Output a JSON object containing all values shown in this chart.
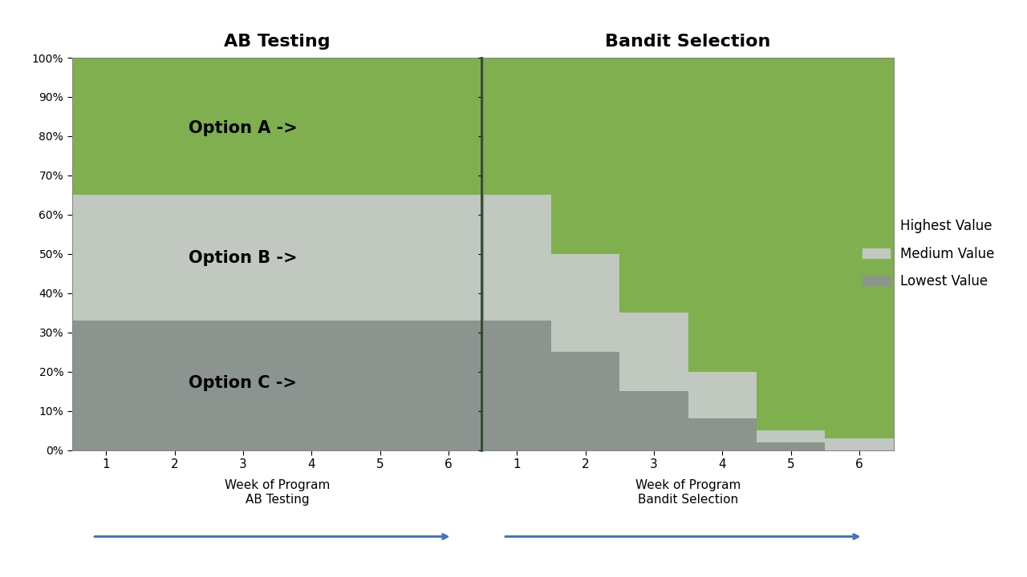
{
  "title_ab": "AB Testing",
  "title_bandit": "Bandit Selection",
  "color_highest": "#7faf4e",
  "color_medium": "#c0c8c0",
  "color_lowest": "#8c9490",
  "color_divider": "#2d4a2d",
  "color_arrow": "#4472c4",
  "xlabel_ab": "Week of Program\nAB Testing",
  "xlabel_bandit": "Week of Program\nBandit Selection",
  "legend_labels": [
    "Highest Value",
    "Medium Value",
    "Lowest Value"
  ],
  "ab_weeks": [
    1,
    2,
    3,
    4,
    5,
    6
  ],
  "ab_highest": [
    100,
    100,
    100,
    100,
    100,
    100
  ],
  "ab_medium_top": [
    65,
    65,
    65,
    65,
    65,
    65
  ],
  "ab_lowest_top": [
    33,
    33,
    33,
    33,
    33,
    33
  ],
  "bandit_weeks": [
    1,
    2,
    3,
    4,
    5,
    6
  ],
  "bandit_medium_top": [
    65,
    50,
    35,
    20,
    5,
    3
  ],
  "bandit_lowest_top": [
    33,
    25,
    15,
    8,
    2,
    0
  ],
  "option_a_label": "Option A ->",
  "option_b_label": "Option B ->",
  "option_c_label": "Option C ->",
  "background_color": "#ffffff"
}
